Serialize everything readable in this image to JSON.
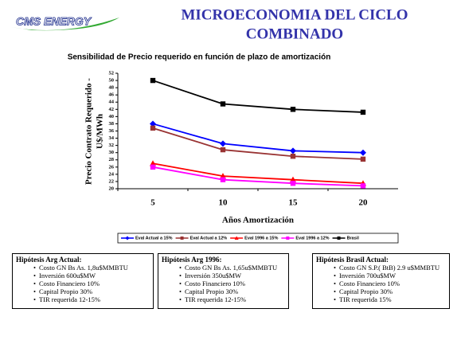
{
  "header": {
    "logo": "CMS ENERGY",
    "title": [
      "MICROECONOMIA DEL CICLO",
      "COMBINADO"
    ]
  },
  "chart_data": {
    "type": "line",
    "title": "Sensibilidad de Precio requerido en función de plazo de amortización",
    "ylabel": [
      "Precio Contrato Requerido -",
      "U$/MWh"
    ],
    "xlabel": "Años Amortización",
    "categories": [
      "5",
      "10",
      "15",
      "20"
    ],
    "ylim": [
      20,
      52
    ],
    "yticks": [
      20,
      22,
      24,
      26,
      28,
      30,
      32,
      34,
      36,
      38,
      40,
      42,
      44,
      46,
      48,
      50,
      52
    ],
    "grid": false,
    "legend": "bottom",
    "series": [
      {
        "name": "Eval Actual a 15%",
        "color": "#0000ff",
        "marker": "diamond",
        "values": [
          38,
          32.5,
          30.5,
          30
        ]
      },
      {
        "name": "Eval Actual a 12%",
        "color": "#993333",
        "marker": "square",
        "values": [
          36.8,
          30.8,
          29,
          28.2
        ]
      },
      {
        "name": "Eval 1996 a 15%",
        "color": "#ff0000",
        "marker": "triangle",
        "values": [
          27,
          23.5,
          22.5,
          21.5
        ]
      },
      {
        "name": "Eval 1996 a 12%",
        "color": "#ff00ff",
        "marker": "square",
        "values": [
          26,
          22.5,
          21.5,
          20.8
        ]
      },
      {
        "name": "Brasil",
        "color": "#000000",
        "marker": "square",
        "values": [
          50,
          43.5,
          42,
          41.2
        ]
      }
    ]
  },
  "boxes": [
    {
      "title": "Hipótesis Arg Actual:",
      "items": [
        "Costo GN Bs As. 1,8u$MMBTU",
        "Inversión 600u$MW",
        "Costo Financiero 10%",
        "Capital Propio 30%",
        "TIR requerida 12-15%"
      ]
    },
    {
      "title": "Hipótesis Arg 1996:",
      "items": [
        "Costo GN Bs As. 1,65u$MMBTU",
        "Inversión 350u$MW",
        "Costo Financiero 10%",
        "Capital Propio 30%",
        "TIR requerida 12-15%"
      ]
    },
    {
      "title": "Hipótesis Brasil Actual:",
      "items": [
        "Costo GN S.P.( BtB) 2.9 u$MMBTU",
        "Inversión 700u$MW",
        "Costo Financiero 10%",
        "Capital Propio 30%",
        "TIR requerida 15%"
      ]
    }
  ]
}
